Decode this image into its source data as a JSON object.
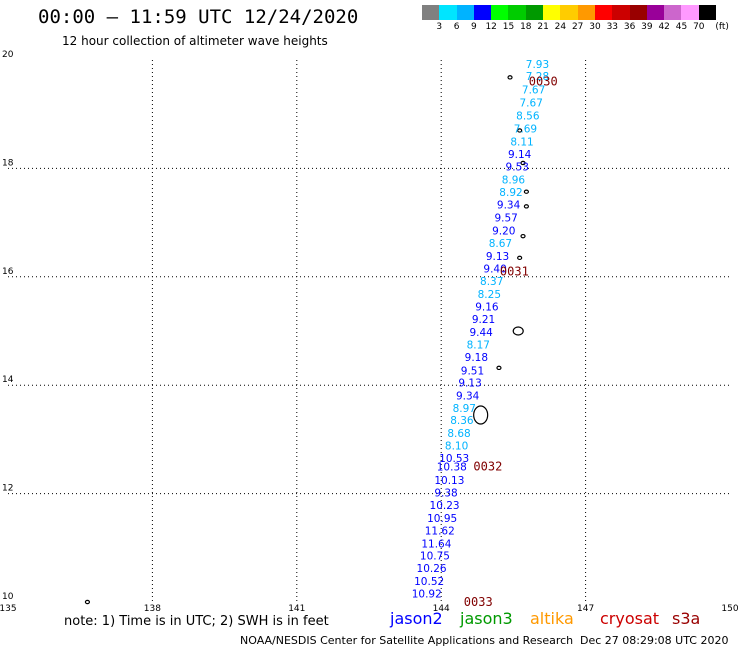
{
  "header": {
    "title": "00:00 – 11:59 UTC 12/24/2020",
    "subtitle": "12 hour collection of altimeter wave heights"
  },
  "scale": {
    "colors": [
      "#808080",
      "#00e5ff",
      "#00b3ff",
      "#0000ff",
      "#00ff00",
      "#00cc00",
      "#009900",
      "#ffff00",
      "#ffcc00",
      "#ff9900",
      "#ff0000",
      "#cc0000",
      "#990000",
      "#990099",
      "#cc66cc",
      "#ff99ff",
      "#000000"
    ],
    "labels": [
      "3",
      "6",
      "9",
      "12",
      "15",
      "18",
      "21",
      "24",
      "27",
      "30",
      "33",
      "36",
      "39",
      "42",
      "45",
      "70",
      "(ft)"
    ]
  },
  "axes": {
    "x_ticks": [
      "135",
      "138",
      "141",
      "144",
      "147",
      "150"
    ],
    "y_ticks": [
      "20",
      "18",
      "16",
      "14",
      "12",
      "10"
    ]
  },
  "map": {
    "lon_range": [
      135,
      150
    ],
    "lat_range": [
      10,
      20
    ]
  },
  "passes": [
    {
      "label": "0030",
      "lon": 145.3,
      "lat": 19.6
    },
    {
      "label": "0031",
      "lon": 144.7,
      "lat": 16.1
    },
    {
      "label": "0032",
      "lon": 144.15,
      "lat": 12.5
    },
    {
      "label": "0033",
      "lon": 143.95,
      "lat": 10.0
    }
  ],
  "measurements": [
    {
      "value": "7.93",
      "color": "#00b3ff",
      "lon": 146.0,
      "lat": 19.85
    },
    {
      "value": "7.28",
      "color": "#00b3ff",
      "lon": 146.0,
      "lat": 19.63
    },
    {
      "value": "7.67",
      "color": "#00b3ff",
      "lon": 145.92,
      "lat": 19.38
    },
    {
      "value": "7.67",
      "color": "#00b3ff",
      "lon": 145.87,
      "lat": 19.14
    },
    {
      "value": "8.56",
      "color": "#00b3ff",
      "lon": 145.8,
      "lat": 18.9
    },
    {
      "value": "7.69",
      "color": "#00b3ff",
      "lon": 145.75,
      "lat": 18.66
    },
    {
      "value": "8.11",
      "color": "#00b3ff",
      "lon": 145.68,
      "lat": 18.42
    },
    {
      "value": "9.14",
      "color": "#0000ff",
      "lon": 145.63,
      "lat": 18.19
    },
    {
      "value": "9.53",
      "color": "#0000ff",
      "lon": 145.58,
      "lat": 17.96
    },
    {
      "value": "8.96",
      "color": "#00b3ff",
      "lon": 145.5,
      "lat": 17.72
    },
    {
      "value": "8.92",
      "color": "#00b3ff",
      "lon": 145.45,
      "lat": 17.49
    },
    {
      "value": "9.34",
      "color": "#0000ff",
      "lon": 145.4,
      "lat": 17.26
    },
    {
      "value": "9.57",
      "color": "#0000ff",
      "lon": 145.35,
      "lat": 17.02
    },
    {
      "value": "9.20",
      "color": "#0000ff",
      "lon": 145.3,
      "lat": 16.78
    },
    {
      "value": "8.67",
      "color": "#00b3ff",
      "lon": 145.23,
      "lat": 16.55
    },
    {
      "value": "9.13",
      "color": "#0000ff",
      "lon": 145.17,
      "lat": 16.31
    },
    {
      "value": "9.40",
      "color": "#0000ff",
      "lon": 145.12,
      "lat": 16.08
    },
    {
      "value": "8.37",
      "color": "#00b3ff",
      "lon": 145.05,
      "lat": 15.85
    },
    {
      "value": "8.25",
      "color": "#00b3ff",
      "lon": 145.0,
      "lat": 15.61
    },
    {
      "value": "9.16",
      "color": "#0000ff",
      "lon": 144.95,
      "lat": 15.38
    },
    {
      "value": "9.21",
      "color": "#0000ff",
      "lon": 144.88,
      "lat": 15.15
    },
    {
      "value": "9.44",
      "color": "#0000ff",
      "lon": 144.83,
      "lat": 14.91
    },
    {
      "value": "8.17",
      "color": "#00b3ff",
      "lon": 144.77,
      "lat": 14.68
    },
    {
      "value": "9.18",
      "color": "#0000ff",
      "lon": 144.73,
      "lat": 14.45
    },
    {
      "value": "9.51",
      "color": "#0000ff",
      "lon": 144.65,
      "lat": 14.2
    },
    {
      "value": "9.13",
      "color": "#0000ff",
      "lon": 144.6,
      "lat": 13.98
    },
    {
      "value": "9.34",
      "color": "#0000ff",
      "lon": 144.55,
      "lat": 13.74
    },
    {
      "value": "8.97",
      "color": "#00b3ff",
      "lon": 144.48,
      "lat": 13.51
    },
    {
      "value": "8.36",
      "color": "#00b3ff",
      "lon": 144.43,
      "lat": 13.28
    },
    {
      "value": "8.68",
      "color": "#00b3ff",
      "lon": 144.37,
      "lat": 13.04
    },
    {
      "value": "8.10",
      "color": "#00b3ff",
      "lon": 144.32,
      "lat": 12.81
    },
    {
      "value": "10.53",
      "color": "#0000ff",
      "lon": 144.27,
      "lat": 12.58
    },
    {
      "value": "10.38",
      "color": "#0000ff",
      "lon": 144.22,
      "lat": 12.43
    },
    {
      "value": "10.13",
      "color": "#0000ff",
      "lon": 144.17,
      "lat": 12.18
    },
    {
      "value": "9.38",
      "color": "#0000ff",
      "lon": 144.1,
      "lat": 11.95
    },
    {
      "value": "10.23",
      "color": "#0000ff",
      "lon": 144.07,
      "lat": 11.72
    },
    {
      "value": "10.95",
      "color": "#0000ff",
      "lon": 144.02,
      "lat": 11.48
    },
    {
      "value": "11.62",
      "color": "#0000ff",
      "lon": 143.97,
      "lat": 11.25
    },
    {
      "value": "11.64",
      "color": "#0000ff",
      "lon": 143.9,
      "lat": 11.01
    },
    {
      "value": "10.75",
      "color": "#0000ff",
      "lon": 143.87,
      "lat": 10.78
    },
    {
      "value": "10.26",
      "color": "#0000ff",
      "lon": 143.8,
      "lat": 10.55
    },
    {
      "value": "10.52",
      "color": "#0000ff",
      "lon": 143.75,
      "lat": 10.31
    },
    {
      "value": "10.92",
      "color": "#0000ff",
      "lon": 143.7,
      "lat": 10.08
    }
  ],
  "islands": [
    {
      "lon": 145.43,
      "lat": 19.68
    },
    {
      "lon": 145.63,
      "lat": 18.7
    },
    {
      "lon": 145.7,
      "lat": 18.1
    },
    {
      "lon": 145.77,
      "lat": 17.57
    },
    {
      "lon": 145.77,
      "lat": 17.3
    },
    {
      "lon": 145.7,
      "lat": 16.75
    },
    {
      "lon": 145.63,
      "lat": 16.35
    },
    {
      "lon": 145.2,
      "lat": 14.32
    },
    {
      "lon": 145.6,
      "lat": 15.0
    },
    {
      "lon": 144.82,
      "lat": 13.45
    },
    {
      "lon": 136.65,
      "lat": 10.0
    }
  ],
  "footer": {
    "note": "note: 1) Time is in UTC; 2) SWH is in feet",
    "satellites": [
      {
        "name": "jason2",
        "color": "#0000ff"
      },
      {
        "name": "jason3",
        "color": "#009900"
      },
      {
        "name": "altika",
        "color": "#ff9900"
      },
      {
        "name": "cryosat",
        "color": "#cc0000"
      },
      {
        "name": "s3a",
        "color": "#990000"
      }
    ],
    "credit": "NOAA/NESDIS Center for Satellite Applications and Research",
    "timestamp": "Dec 27 08:29:08 UTC 2020"
  }
}
